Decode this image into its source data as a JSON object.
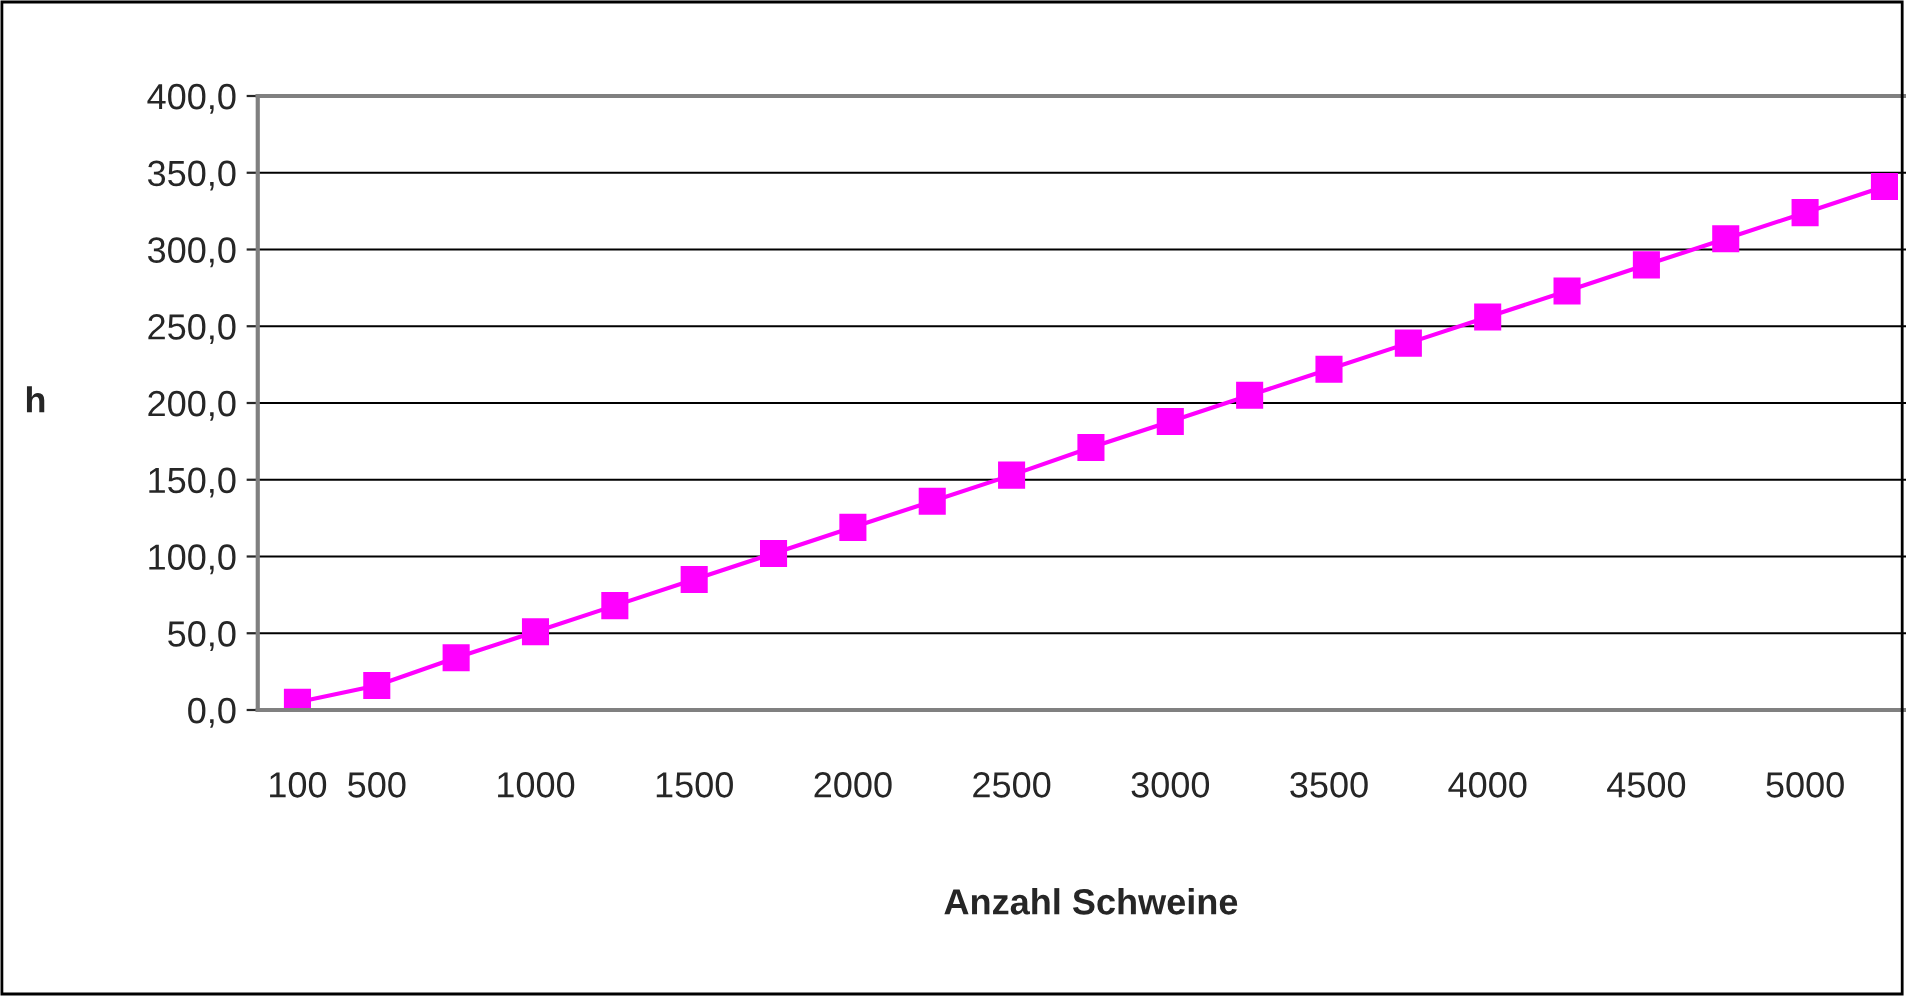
{
  "chart_data": {
    "type": "line",
    "xlabel": "Anzahl Schweine",
    "ylabel": "h",
    "categories": [
      "100",
      "500",
      null,
      "1000",
      null,
      "1500",
      null,
      "2000",
      null,
      "2500",
      null,
      "3000",
      null,
      "3500",
      null,
      "4000",
      null,
      "4500",
      null,
      "5000",
      null
    ],
    "series": [
      {
        "color": "#ff00ff",
        "values": [
          5,
          16,
          34,
          51,
          68,
          85,
          102,
          119,
          136,
          153,
          171,
          188,
          205,
          222,
          239,
          256,
          273,
          290,
          307,
          324,
          341
        ]
      }
    ],
    "ylim": [
      0,
      400
    ],
    "yticks": [
      {
        "value": 0,
        "label": "0,0"
      },
      {
        "value": 50,
        "label": "50,0"
      },
      {
        "value": 100,
        "label": "100,0"
      },
      {
        "value": 150,
        "label": "150,0"
      },
      {
        "value": 200,
        "label": "200,0"
      },
      {
        "value": 250,
        "label": "250,0"
      },
      {
        "value": 300,
        "label": "300,0"
      },
      {
        "value": 350,
        "label": "350,0"
      },
      {
        "value": 400,
        "label": "400,0"
      }
    ],
    "grid": "y",
    "marker": "square",
    "line_style": "solid",
    "legend": false
  }
}
